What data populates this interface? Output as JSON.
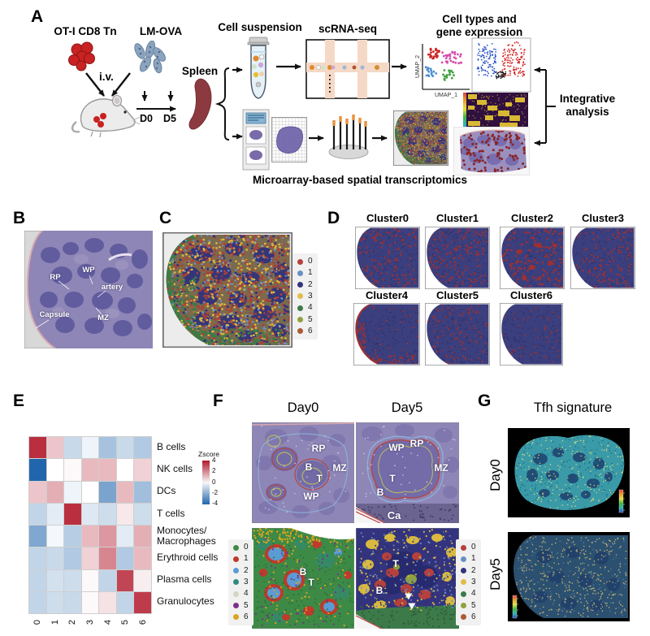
{
  "panel_a": {
    "label": "A",
    "tn_label": "OT-I CD8 Tn",
    "lmova_label": "LM-OVA",
    "iv_label": "i.v.",
    "d0_label": "D0",
    "d5_label": "D5",
    "spleen_label": "Spleen",
    "cell_suspension_label": "Cell suspension",
    "scrna_label": "scRNA-seq",
    "celltypes_line1": "Cell types and",
    "celltypes_line2": "gene expression",
    "umap_x_label": "UMAP_1",
    "umap_y_label": "UMAP_2",
    "integrative_line1": "Integrative",
    "integrative_line2": "analysis",
    "microarray_label": "Microarray-based spatial transcriptomics"
  },
  "panel_b": {
    "label": "B",
    "annotations": [
      "RP",
      "WP",
      "artery",
      "Capsule",
      "MZ"
    ]
  },
  "panel_c": {
    "label": "C",
    "legend": [
      {
        "id": "0",
        "color": "#b5413c"
      },
      {
        "id": "1",
        "color": "#6a8fc4"
      },
      {
        "id": "2",
        "color": "#34347e"
      },
      {
        "id": "3",
        "color": "#e0bd4a"
      },
      {
        "id": "4",
        "color": "#3d7a4a"
      },
      {
        "id": "5",
        "color": "#8ea23e"
      },
      {
        "id": "6",
        "color": "#ad5a35"
      }
    ]
  },
  "panel_d": {
    "label": "D",
    "clusters": [
      "Cluster0",
      "Cluster1",
      "Cluster2",
      "Cluster3",
      "Cluster4",
      "Cluster5",
      "Cluster6"
    ]
  },
  "panel_e": {
    "label": "E",
    "chart_data": {
      "type": "heatmap",
      "rows": [
        "B cells",
        "NK cells",
        "DCs",
        "T cells",
        "Monocytes/ Macrophages",
        "Erythroid cells",
        "Plasma cells",
        "Granulocytes"
      ],
      "columns": [
        "0",
        "1",
        "2",
        "3",
        "4",
        "5",
        "6"
      ],
      "values": [
        [
          3.6,
          1.0,
          -1.0,
          -0.3,
          -1.6,
          -1.0,
          -1.4
        ],
        [
          -4.0,
          0.0,
          0.1,
          1.2,
          1.2,
          0.0,
          0.8
        ],
        [
          1.0,
          1.4,
          -0.3,
          0.0,
          -2.4,
          1.2,
          -1.7
        ],
        [
          -1.1,
          -0.5,
          3.6,
          -0.6,
          -0.9,
          0.4,
          -0.9
        ],
        [
          -2.3,
          -0.2,
          -1.3,
          1.2,
          1.8,
          -0.5,
          1.4
        ],
        [
          -1.1,
          -1.0,
          -1.4,
          0.8,
          2.1,
          -1.4,
          1.2
        ],
        [
          -1.1,
          -0.8,
          -0.9,
          0.1,
          -1.1,
          3.2,
          0.3
        ],
        [
          -1.1,
          -0.9,
          -1.0,
          0.1,
          0.5,
          -1.1,
          3.4
        ]
      ],
      "legend_title": "Zscore",
      "legend_ticks": [
        "4",
        "2",
        "0",
        "-2",
        "-4"
      ],
      "colormap": {
        "max_color": "#b2182b",
        "mid_color": "#ffffff",
        "min_color": "#2166ac",
        "vmax": 4,
        "vmin": -4
      }
    }
  },
  "panel_f": {
    "label": "F",
    "day0_title": "Day0",
    "day5_title": "Day5",
    "day0_annotations": [
      "RP",
      "B",
      "MZ",
      "T",
      "WP"
    ],
    "day5_annotations": [
      "WP",
      "RP",
      "MZ",
      "T",
      "B",
      "Ca"
    ],
    "day0_map_labels": [
      "B",
      "T"
    ],
    "day5_map_labels": [
      "T",
      "B"
    ],
    "legend_day0": [
      {
        "id": "0",
        "color": "#3d8a46"
      },
      {
        "id": "1",
        "color": "#bf3a2b"
      },
      {
        "id": "2",
        "color": "#5b9bd5"
      },
      {
        "id": "3",
        "color": "#2f8a80"
      },
      {
        "id": "4",
        "color": "#d4d6c2"
      },
      {
        "id": "5",
        "color": "#7c2f8a"
      },
      {
        "id": "6",
        "color": "#d9a41f"
      }
    ],
    "legend_day5": [
      {
        "id": "0",
        "color": "#b5413c"
      },
      {
        "id": "1",
        "color": "#6a8fc4"
      },
      {
        "id": "2",
        "color": "#34347e"
      },
      {
        "id": "3",
        "color": "#e0bd4a"
      },
      {
        "id": "4",
        "color": "#3d7a4a"
      },
      {
        "id": "5",
        "color": "#8ea23e"
      },
      {
        "id": "6",
        "color": "#ad5a35"
      }
    ]
  },
  "panel_g": {
    "label": "G",
    "title": "Tfh signature",
    "row0_label": "Day0",
    "row1_label": "Day5"
  }
}
